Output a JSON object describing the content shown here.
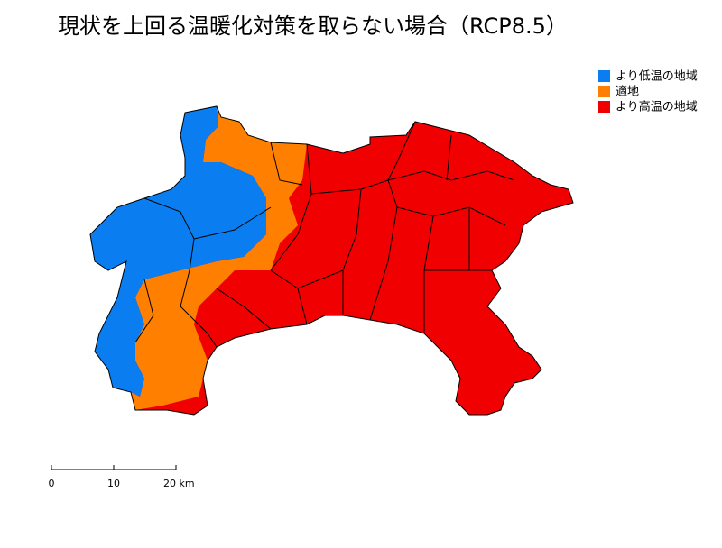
{
  "title": "現状を上回る温暖化対策を取らない場合（RCP8.5）",
  "legend": [
    {
      "label": "より低温の地域",
      "color": "#0a7ef0"
    },
    {
      "label": "適地",
      "color": "#ff8000"
    },
    {
      "label": "より高温の地域",
      "color": "#f00000"
    }
  ],
  "scale_bar": {
    "labels": [
      "0",
      "10",
      "20 km"
    ]
  }
}
